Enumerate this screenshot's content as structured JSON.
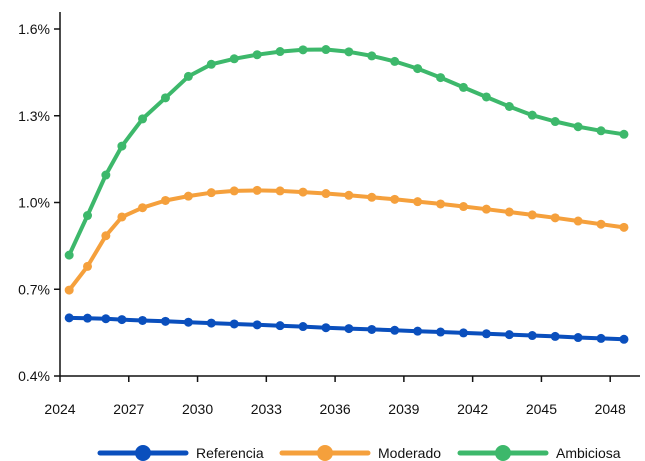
{
  "chart_data": {
    "type": "line",
    "title": "",
    "xlabel": "",
    "ylabel": "",
    "x": [
      2024.4,
      2025.2,
      2026.0,
      2026.7,
      2027.6,
      2028.6,
      2029.6,
      2030.6,
      2031.6,
      2032.6,
      2033.6,
      2034.6,
      2035.6,
      2036.6,
      2037.6,
      2038.6,
      2039.6,
      2040.6,
      2041.6,
      2042.6,
      2043.6,
      2044.6,
      2045.6,
      2046.6,
      2047.6,
      2048.6
    ],
    "xlim": [
      2024,
      2049
    ],
    "ylim": [
      0.4,
      1.65
    ],
    "x_ticks": [
      "2024",
      "2027",
      "2030",
      "2033",
      "2036",
      "2039",
      "2042",
      "2045",
      "2048"
    ],
    "x_tick_values": [
      2024,
      2027,
      2030,
      2033,
      2036,
      2039,
      2042,
      2045,
      2048
    ],
    "y_ticks": [
      "0.4%",
      "0.7%",
      "1.0%",
      "1.3%",
      "1.6%"
    ],
    "y_tick_values": [
      0.4,
      0.7,
      1.0,
      1.3,
      1.6
    ],
    "grid": false,
    "legend_position": "bottom",
    "series": [
      {
        "name": "Referencia",
        "color": "#0a4fbd",
        "values": [
          0.601,
          0.6,
          0.598,
          0.595,
          0.592,
          0.589,
          0.586,
          0.583,
          0.58,
          0.577,
          0.574,
          0.571,
          0.567,
          0.564,
          0.561,
          0.558,
          0.555,
          0.552,
          0.549,
          0.546,
          0.543,
          0.54,
          0.537,
          0.533,
          0.53,
          0.527
        ]
      },
      {
        "name": "Moderado",
        "color": "#f5a03c",
        "values": [
          0.697,
          0.779,
          0.885,
          0.95,
          0.982,
          1.007,
          1.022,
          1.034,
          1.04,
          1.042,
          1.04,
          1.036,
          1.031,
          1.025,
          1.018,
          1.011,
          1.003,
          0.995,
          0.986,
          0.977,
          0.967,
          0.957,
          0.947,
          0.936,
          0.925,
          0.914
        ]
      },
      {
        "name": "Ambiciosa",
        "color": "#3db86b",
        "values": [
          0.818,
          0.955,
          1.095,
          1.195,
          1.289,
          1.362,
          1.436,
          1.478,
          1.497,
          1.511,
          1.522,
          1.528,
          1.529,
          1.521,
          1.507,
          1.488,
          1.463,
          1.432,
          1.398,
          1.365,
          1.332,
          1.302,
          1.28,
          1.262,
          1.248,
          1.236
        ]
      }
    ]
  }
}
